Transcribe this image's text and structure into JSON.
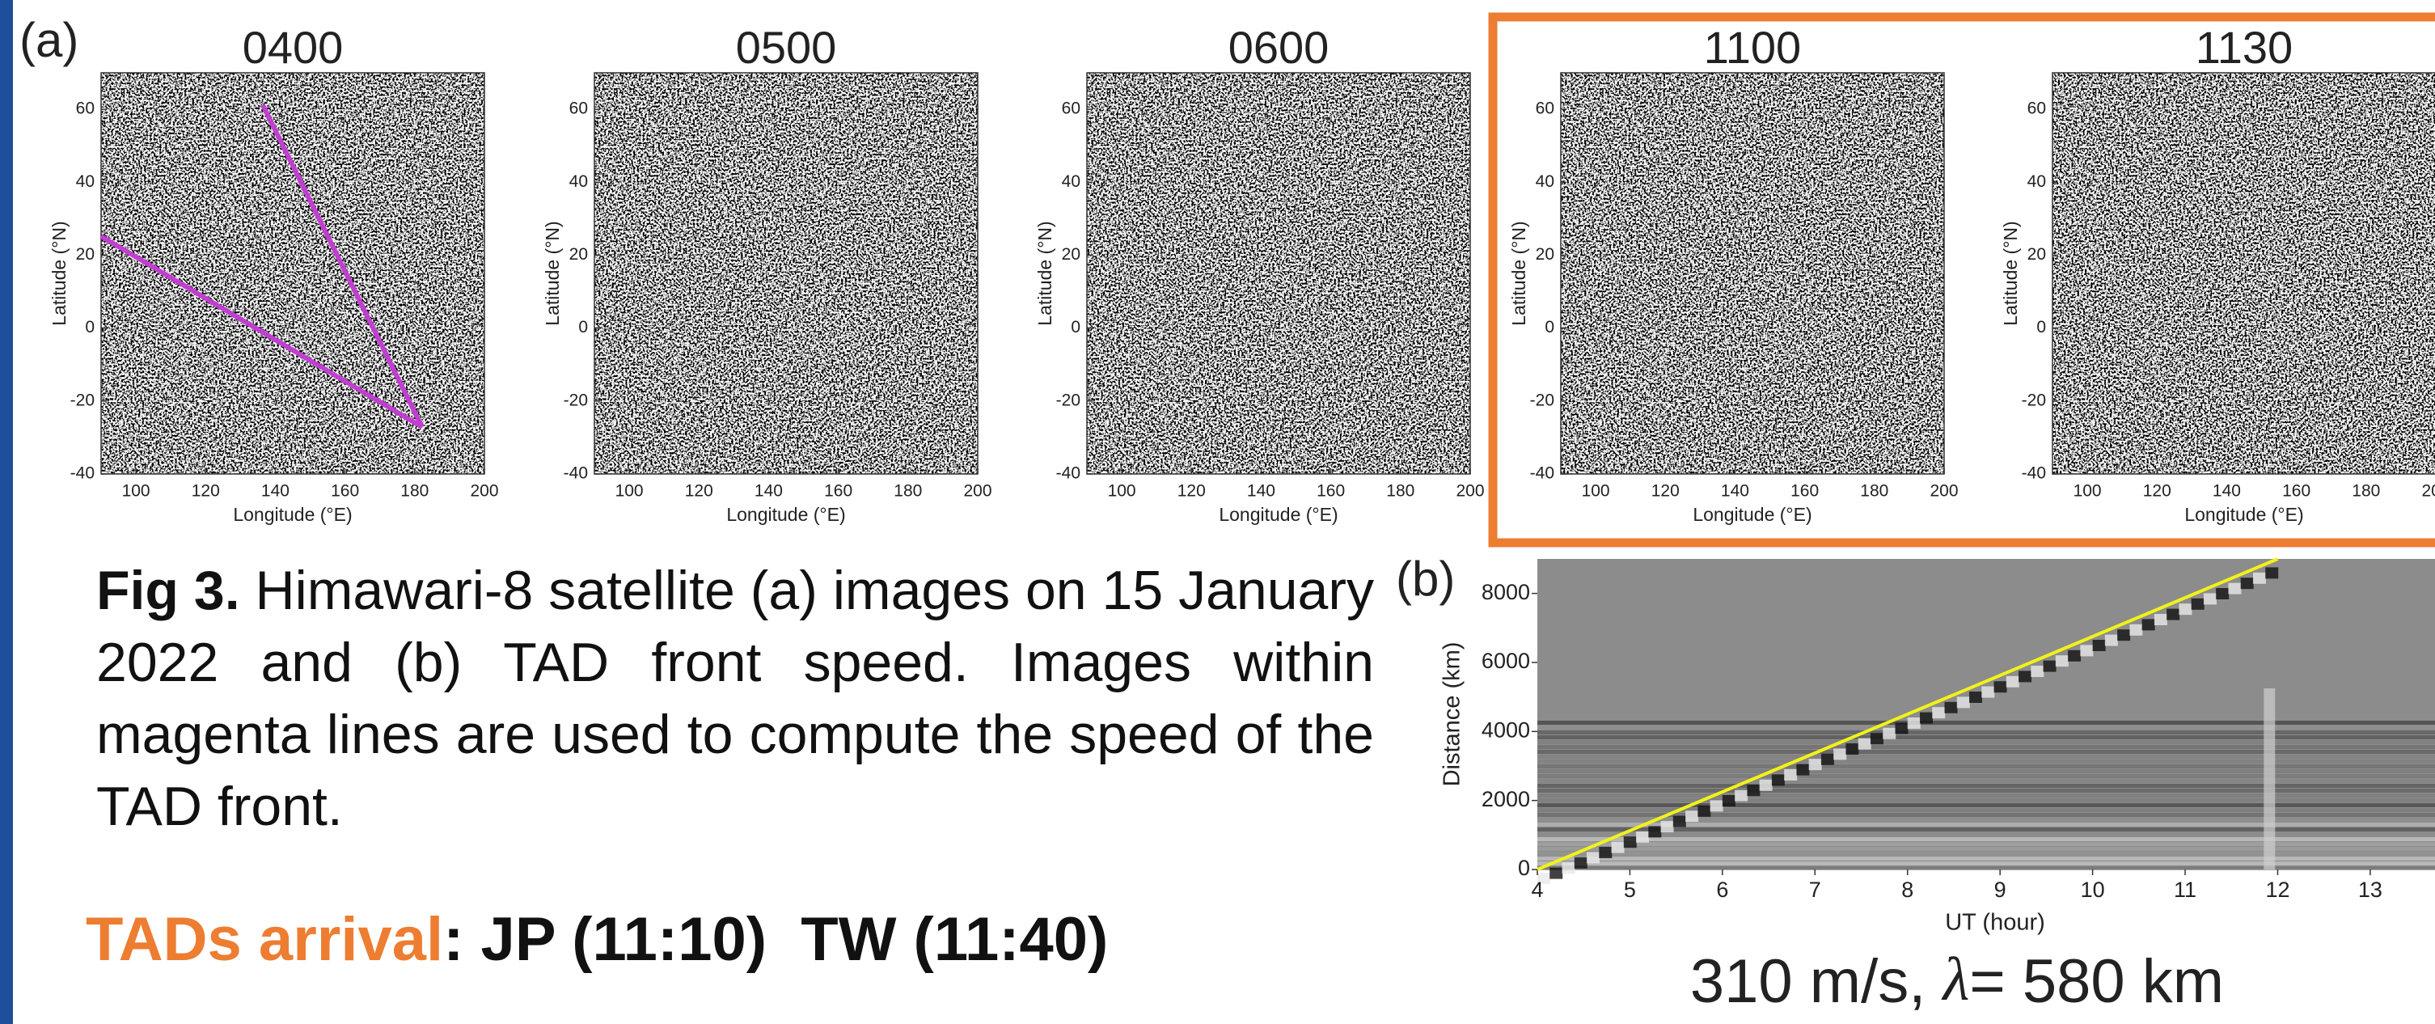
{
  "panel_a": {
    "label": "(a)",
    "images": [
      {
        "time": "0400"
      },
      {
        "time": "0500"
      },
      {
        "time": "0600"
      },
      {
        "time": "1100"
      },
      {
        "time": "1130"
      }
    ],
    "xlabel": "Longitude (°E)",
    "ylabel": "Latitude (°N)",
    "xlim": [
      90,
      200
    ],
    "ylim": [
      -40,
      70
    ],
    "xticks": [
      100,
      120,
      140,
      160,
      180,
      200
    ],
    "yticks": [
      60,
      40,
      20,
      0,
      -20,
      -40
    ]
  },
  "caption": {
    "label": "Fig 3.",
    "text": "Himawari-8 satellite (a) images on 15 January 2022 and (b) TAD front speed. Images within magenta lines are used to compute the speed of the TAD front."
  },
  "arrival": {
    "label": "TADs arrival",
    "text": ": JP (11:10)  TW (11:40)"
  },
  "panel_b": {
    "label": "(b)",
    "xlabel": "UT (hour)",
    "ylabel": "Distance (km)",
    "xlim": [
      4,
      13.7
    ],
    "ylim": [
      0,
      9000
    ],
    "xticks": [
      4,
      5,
      6,
      7,
      8,
      9,
      10,
      11,
      12,
      13
    ],
    "yticks": [
      0,
      2000,
      4000,
      6000,
      8000
    ],
    "fit": {
      "x": [
        4,
        12
      ],
      "y": [
        0,
        9000
      ]
    },
    "result": {
      "speed": "310 m/s, ",
      "symbol": "λ",
      "wavelength": "= 580 km"
    }
  }
}
